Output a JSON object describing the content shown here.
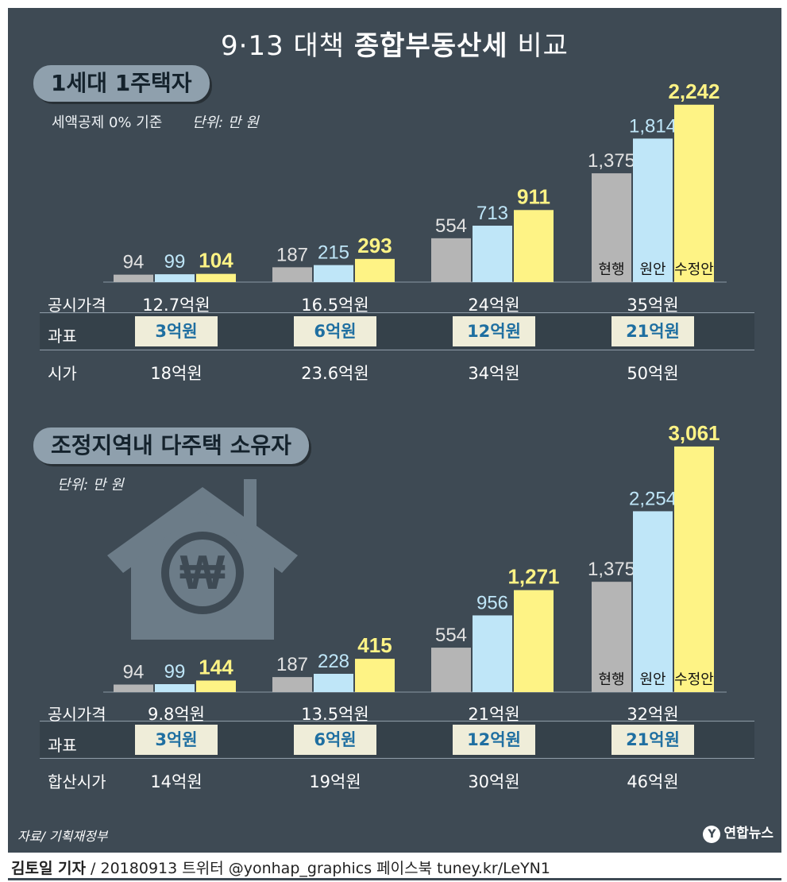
{
  "title_prefix": "9·13 대책 ",
  "title_bold": "종합부동산세",
  "title_suffix": " 비교",
  "colors": {
    "current": "#b5b5b5",
    "proposal": "#bfe6f8",
    "revised": "#fef385",
    "bg": "#3e4a54"
  },
  "section1": {
    "label": "1세대 1주택자",
    "note": "세액공제 0% 기준",
    "unit": "단위: 만 원",
    "row1_label": "공시가격",
    "row2_label": "과표",
    "row3_label": "시가",
    "row1": [
      "12.7억원",
      "16.5억원",
      "24억원",
      "35억원"
    ],
    "row2": [
      "3억원",
      "6억원",
      "12억원",
      "21억원"
    ],
    "row3": [
      "18억원",
      "23.6억원",
      "34억원",
      "50억원"
    ]
  },
  "section2": {
    "label": "조정지역내 다주택 소유자",
    "unit": "단위: 만 원",
    "row1_label": "공시가격",
    "row2_label": "과표",
    "row3_label": "합산시가",
    "row1": [
      "9.8억원",
      "13.5억원",
      "21억원",
      "32억원"
    ],
    "row2": [
      "3억원",
      "6억원",
      "12억원",
      "21억원"
    ],
    "row3": [
      "14억원",
      "19억원",
      "30억원",
      "46억원"
    ]
  },
  "chart_data": [
    {
      "type": "bar",
      "title": "1세대 1주택자",
      "categories": [
        "12.7억원",
        "16.5억원",
        "24억원",
        "35억원"
      ],
      "series": [
        {
          "name": "현행",
          "values": [
            94,
            187,
            554,
            1375
          ]
        },
        {
          "name": "원안",
          "values": [
            99,
            215,
            713,
            1814
          ]
        },
        {
          "name": "수정안",
          "values": [
            104,
            293,
            911,
            2242
          ]
        }
      ],
      "value_labels": [
        [
          "94",
          "99",
          "104"
        ],
        [
          "187",
          "215",
          "293"
        ],
        [
          "554",
          "713",
          "911"
        ],
        [
          "1,375",
          "1,814",
          "2,242"
        ]
      ],
      "ylim": [
        0,
        2300
      ]
    },
    {
      "type": "bar",
      "title": "조정지역내 다주택 소유자",
      "categories": [
        "9.8억원",
        "13.5억원",
        "21억원",
        "32억원"
      ],
      "series": [
        {
          "name": "현행",
          "values": [
            94,
            187,
            554,
            1375
          ]
        },
        {
          "name": "원안",
          "values": [
            99,
            228,
            956,
            2254
          ]
        },
        {
          "name": "수정안",
          "values": [
            144,
            415,
            1271,
            3061
          ]
        }
      ],
      "value_labels": [
        [
          "94",
          "99",
          "144"
        ],
        [
          "187",
          "228",
          "415"
        ],
        [
          "554",
          "956",
          "1,271"
        ],
        [
          "1,375",
          "2,254",
          "3,061"
        ]
      ],
      "ylim": [
        0,
        3100
      ]
    }
  ],
  "source": "자료/ 기획재정부",
  "logo": "연합뉴스",
  "footer_author": "김토일 기자",
  "footer_rest": " / 20180913   트위터 @yonhap_graphics  페이스북 tuney.kr/LeYN1"
}
